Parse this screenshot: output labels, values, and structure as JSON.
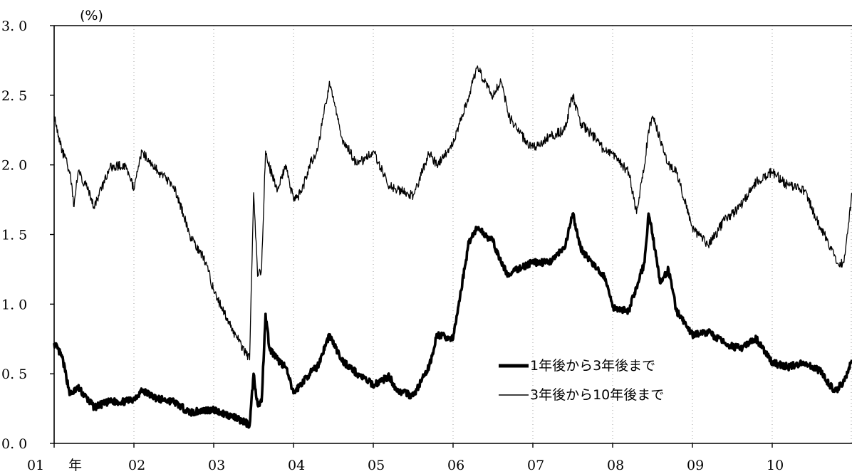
{
  "chart_data": {
    "type": "line",
    "unit_label": "(%)",
    "title": "",
    "xlabel": "",
    "ylabel": "",
    "xlim": [
      2001,
      2011
    ],
    "ylim": [
      0,
      3.0
    ],
    "y_ticks": [
      "0. 0",
      "0. 5",
      "1. 0",
      "1. 5",
      "2. 0",
      "2. 5",
      "3. 0"
    ],
    "y_tick_values": [
      0,
      0.5,
      1.0,
      1.5,
      2.0,
      2.5,
      3.0
    ],
    "x_ticks": [
      "01",
      "02",
      "03",
      "04",
      "05",
      "06",
      "07",
      "08",
      "09",
      "10"
    ],
    "x_tick_values": [
      2001,
      2002,
      2003,
      2004,
      2005,
      2006,
      2007,
      2008,
      2009,
      2010
    ],
    "x_unit_label": "年",
    "grid": "vertical dotted",
    "legend_position": "bottom-right",
    "series": [
      {
        "name": "1年後から3年後まで",
        "line": "thick",
        "color": "#000000",
        "x": [
          2001.0,
          2001.1,
          2001.2,
          2001.3,
          2001.5,
          2001.7,
          2001.9,
          2002.0,
          2002.1,
          2002.3,
          2002.5,
          2002.7,
          2002.9,
          2003.0,
          2003.2,
          2003.4,
          2003.45,
          2003.5,
          2003.55,
          2003.6,
          2003.65,
          2003.7,
          2003.8,
          2003.9,
          2004.0,
          2004.2,
          2004.3,
          2004.45,
          2004.6,
          2004.8,
          2005.0,
          2005.2,
          2005.3,
          2005.5,
          2005.7,
          2005.8,
          2006.0,
          2006.2,
          2006.3,
          2006.5,
          2006.6,
          2006.7,
          2006.8,
          2007.0,
          2007.2,
          2007.4,
          2007.5,
          2007.6,
          2007.8,
          2007.9,
          2008.0,
          2008.2,
          2008.4,
          2008.45,
          2008.5,
          2008.6,
          2008.7,
          2008.8,
          2009.0,
          2009.2,
          2009.4,
          2009.6,
          2009.8,
          2010.0,
          2010.2,
          2010.4,
          2010.6,
          2010.75,
          2010.8,
          2010.9,
          2011.0
        ],
        "y": [
          0.72,
          0.62,
          0.35,
          0.4,
          0.26,
          0.3,
          0.3,
          0.32,
          0.38,
          0.32,
          0.3,
          0.22,
          0.24,
          0.24,
          0.2,
          0.15,
          0.13,
          0.5,
          0.28,
          0.3,
          0.93,
          0.68,
          0.6,
          0.55,
          0.36,
          0.5,
          0.55,
          0.78,
          0.6,
          0.5,
          0.42,
          0.48,
          0.38,
          0.34,
          0.55,
          0.78,
          0.75,
          1.45,
          1.55,
          1.45,
          1.3,
          1.2,
          1.25,
          1.3,
          1.3,
          1.4,
          1.65,
          1.4,
          1.25,
          1.2,
          0.98,
          0.95,
          1.3,
          1.65,
          1.5,
          1.15,
          1.25,
          0.95,
          0.78,
          0.8,
          0.72,
          0.68,
          0.75,
          0.58,
          0.55,
          0.58,
          0.52,
          0.4,
          0.38,
          0.45,
          0.6
        ]
      },
      {
        "name": "3年後から10年後まで",
        "line": "thin",
        "color": "#000000",
        "x": [
          2001.0,
          2001.1,
          2001.2,
          2001.25,
          2001.3,
          2001.4,
          2001.5,
          2001.7,
          2001.9,
          2002.0,
          2002.1,
          2002.3,
          2002.5,
          2002.7,
          2002.9,
          2003.0,
          2003.2,
          2003.4,
          2003.45,
          2003.5,
          2003.55,
          2003.6,
          2003.65,
          2003.7,
          2003.8,
          2003.9,
          2004.0,
          2004.1,
          2004.2,
          2004.3,
          2004.45,
          2004.6,
          2004.8,
          2005.0,
          2005.2,
          2005.3,
          2005.5,
          2005.7,
          2005.8,
          2006.0,
          2006.2,
          2006.3,
          2006.5,
          2006.6,
          2006.7,
          2006.8,
          2007.0,
          2007.2,
          2007.4,
          2007.5,
          2007.6,
          2007.8,
          2007.9,
          2008.0,
          2008.2,
          2008.3,
          2008.4,
          2008.45,
          2008.5,
          2008.7,
          2008.8,
          2009.0,
          2009.2,
          2009.4,
          2009.6,
          2009.8,
          2010.0,
          2010.2,
          2010.4,
          2010.6,
          2010.7,
          2010.8,
          2010.9,
          2011.0
        ],
        "y": [
          2.35,
          2.1,
          1.95,
          1.7,
          1.95,
          1.85,
          1.7,
          1.98,
          2.0,
          1.82,
          2.1,
          1.95,
          1.85,
          1.5,
          1.3,
          1.1,
          0.85,
          0.65,
          0.6,
          1.8,
          1.2,
          1.25,
          2.1,
          1.98,
          1.82,
          2.0,
          1.75,
          1.8,
          2.0,
          2.1,
          2.6,
          2.2,
          2.0,
          2.1,
          1.85,
          1.82,
          1.78,
          2.08,
          2.0,
          2.15,
          2.5,
          2.7,
          2.5,
          2.6,
          2.35,
          2.25,
          2.12,
          2.2,
          2.25,
          2.5,
          2.3,
          2.18,
          2.1,
          2.08,
          1.95,
          1.65,
          2.0,
          2.25,
          2.35,
          2.0,
          1.95,
          1.55,
          1.42,
          1.6,
          1.7,
          1.88,
          1.95,
          1.85,
          1.82,
          1.55,
          1.45,
          1.3,
          1.3,
          1.8
        ]
      }
    ]
  }
}
